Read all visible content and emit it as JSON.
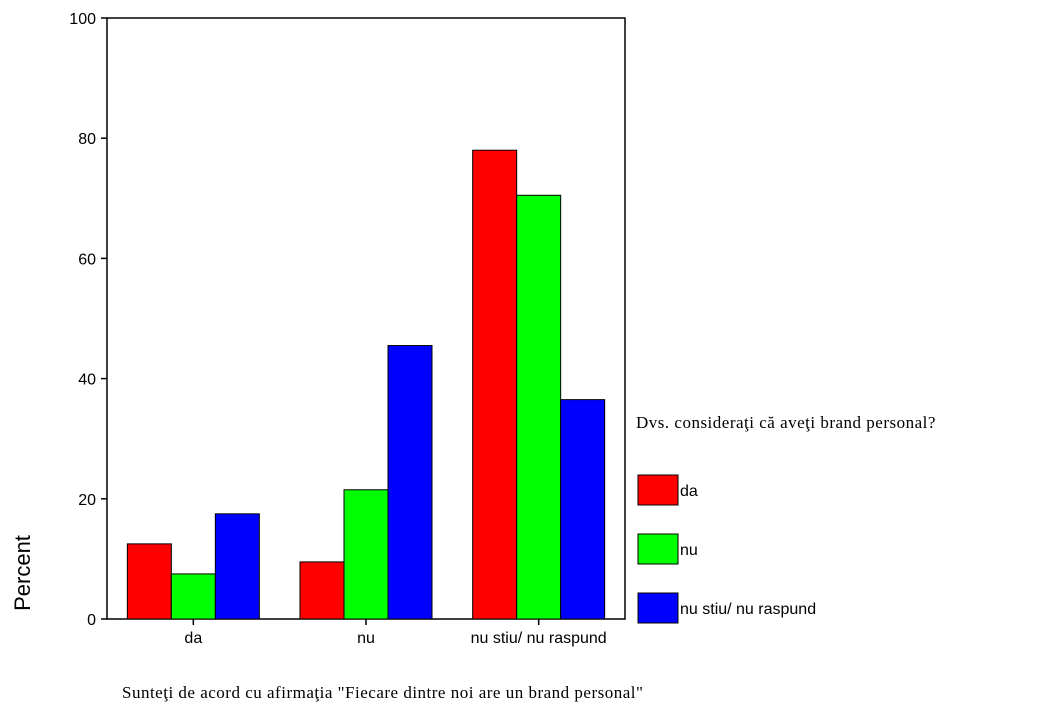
{
  "chart_data": {
    "type": "bar",
    "xlabel": "Sunteţi de acord cu afirmaţia \"Fiecare dintre noi are un brand personal\"",
    "ylabel": "Percent",
    "ylim": [
      0,
      100
    ],
    "yticks": [
      "0",
      "20",
      "40",
      "60",
      "80",
      "100"
    ],
    "categories": [
      "da",
      "nu",
      "nu stiu/ nu raspund"
    ],
    "legend_title": "Dvs. consideraţi că aveţi brand personal?",
    "legend_position": "right",
    "grid": false,
    "series": [
      {
        "name": "da",
        "color": "#ff0000",
        "values": [
          12.5,
          9.5,
          78
        ]
      },
      {
        "name": "nu",
        "color": "#00ff00",
        "values": [
          7.5,
          21.5,
          70.5
        ]
      },
      {
        "name": "nu stiu/ nu raspund",
        "color": "#0000ff",
        "values": [
          17.5,
          45.5,
          36.5
        ]
      }
    ]
  }
}
